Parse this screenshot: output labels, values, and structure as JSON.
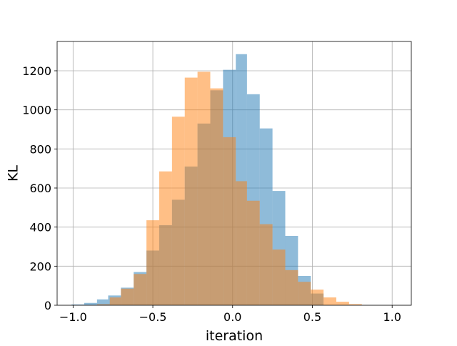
{
  "chart_data": {
    "type": "bar",
    "subtype": "histogram",
    "title": "",
    "xlabel": "iteration",
    "ylabel": "KL",
    "xlim": [
      -1.1,
      1.12
    ],
    "ylim": [
      0,
      1350
    ],
    "xticks": [
      -1.0,
      -0.5,
      0.0,
      0.5,
      1.0
    ],
    "xtick_labels": [
      "−1.0",
      "−0.5",
      "0.0",
      "0.5",
      "1.0"
    ],
    "yticks": [
      0,
      200,
      400,
      600,
      800,
      1000,
      1200
    ],
    "ytick_labels": [
      "0",
      "200",
      "400",
      "600",
      "800",
      "1000",
      "1200"
    ],
    "grid": true,
    "legend": "none",
    "series": [
      {
        "color": "#1f77b4",
        "alpha": 0.5,
        "bins": [
          {
            "x0": -1.01,
            "x1": -0.93,
            "value": 4
          },
          {
            "x0": -0.93,
            "x1": -0.85,
            "value": 12
          },
          {
            "x0": -0.85,
            "x1": -0.78,
            "value": 30
          },
          {
            "x0": -0.78,
            "x1": -0.7,
            "value": 50
          },
          {
            "x0": -0.7,
            "x1": -0.62,
            "value": 90
          },
          {
            "x0": -0.62,
            "x1": -0.54,
            "value": 170
          },
          {
            "x0": -0.54,
            "x1": -0.46,
            "value": 280
          },
          {
            "x0": -0.46,
            "x1": -0.38,
            "value": 410
          },
          {
            "x0": -0.38,
            "x1": -0.3,
            "value": 540
          },
          {
            "x0": -0.3,
            "x1": -0.22,
            "value": 710
          },
          {
            "x0": -0.22,
            "x1": -0.14,
            "value": 930
          },
          {
            "x0": -0.14,
            "x1": -0.06,
            "value": 1100
          },
          {
            "x0": -0.06,
            "x1": 0.02,
            "value": 1205
          },
          {
            "x0": 0.02,
            "x1": 0.09,
            "value": 1285
          },
          {
            "x0": 0.09,
            "x1": 0.17,
            "value": 1080
          },
          {
            "x0": 0.17,
            "x1": 0.25,
            "value": 905
          },
          {
            "x0": 0.25,
            "x1": 0.33,
            "value": 585
          },
          {
            "x0": 0.33,
            "x1": 0.41,
            "value": 355
          },
          {
            "x0": 0.41,
            "x1": 0.49,
            "value": 150
          },
          {
            "x0": 0.49,
            "x1": 0.57,
            "value": 60
          }
        ]
      },
      {
        "color": "#ff7f0e",
        "alpha": 0.5,
        "bins": [
          {
            "x0": -0.85,
            "x1": -0.77,
            "value": 5
          },
          {
            "x0": -0.77,
            "x1": -0.7,
            "value": 40
          },
          {
            "x0": -0.7,
            "x1": -0.62,
            "value": 85
          },
          {
            "x0": -0.62,
            "x1": -0.54,
            "value": 160
          },
          {
            "x0": -0.54,
            "x1": -0.46,
            "value": 435
          },
          {
            "x0": -0.46,
            "x1": -0.38,
            "value": 685
          },
          {
            "x0": -0.38,
            "x1": -0.3,
            "value": 965
          },
          {
            "x0": -0.3,
            "x1": -0.22,
            "value": 1165
          },
          {
            "x0": -0.22,
            "x1": -0.14,
            "value": 1195
          },
          {
            "x0": -0.14,
            "x1": -0.06,
            "value": 1110
          },
          {
            "x0": -0.06,
            "x1": 0.02,
            "value": 860
          },
          {
            "x0": 0.02,
            "x1": 0.09,
            "value": 635
          },
          {
            "x0": 0.09,
            "x1": 0.17,
            "value": 535
          },
          {
            "x0": 0.17,
            "x1": 0.25,
            "value": 415
          },
          {
            "x0": 0.25,
            "x1": 0.33,
            "value": 285
          },
          {
            "x0": 0.33,
            "x1": 0.41,
            "value": 180
          },
          {
            "x0": 0.41,
            "x1": 0.49,
            "value": 120
          },
          {
            "x0": 0.49,
            "x1": 0.57,
            "value": 80
          },
          {
            "x0": 0.57,
            "x1": 0.65,
            "value": 40
          },
          {
            "x0": 0.65,
            "x1": 0.73,
            "value": 18
          },
          {
            "x0": 0.73,
            "x1": 0.81,
            "value": 6
          }
        ]
      }
    ]
  }
}
